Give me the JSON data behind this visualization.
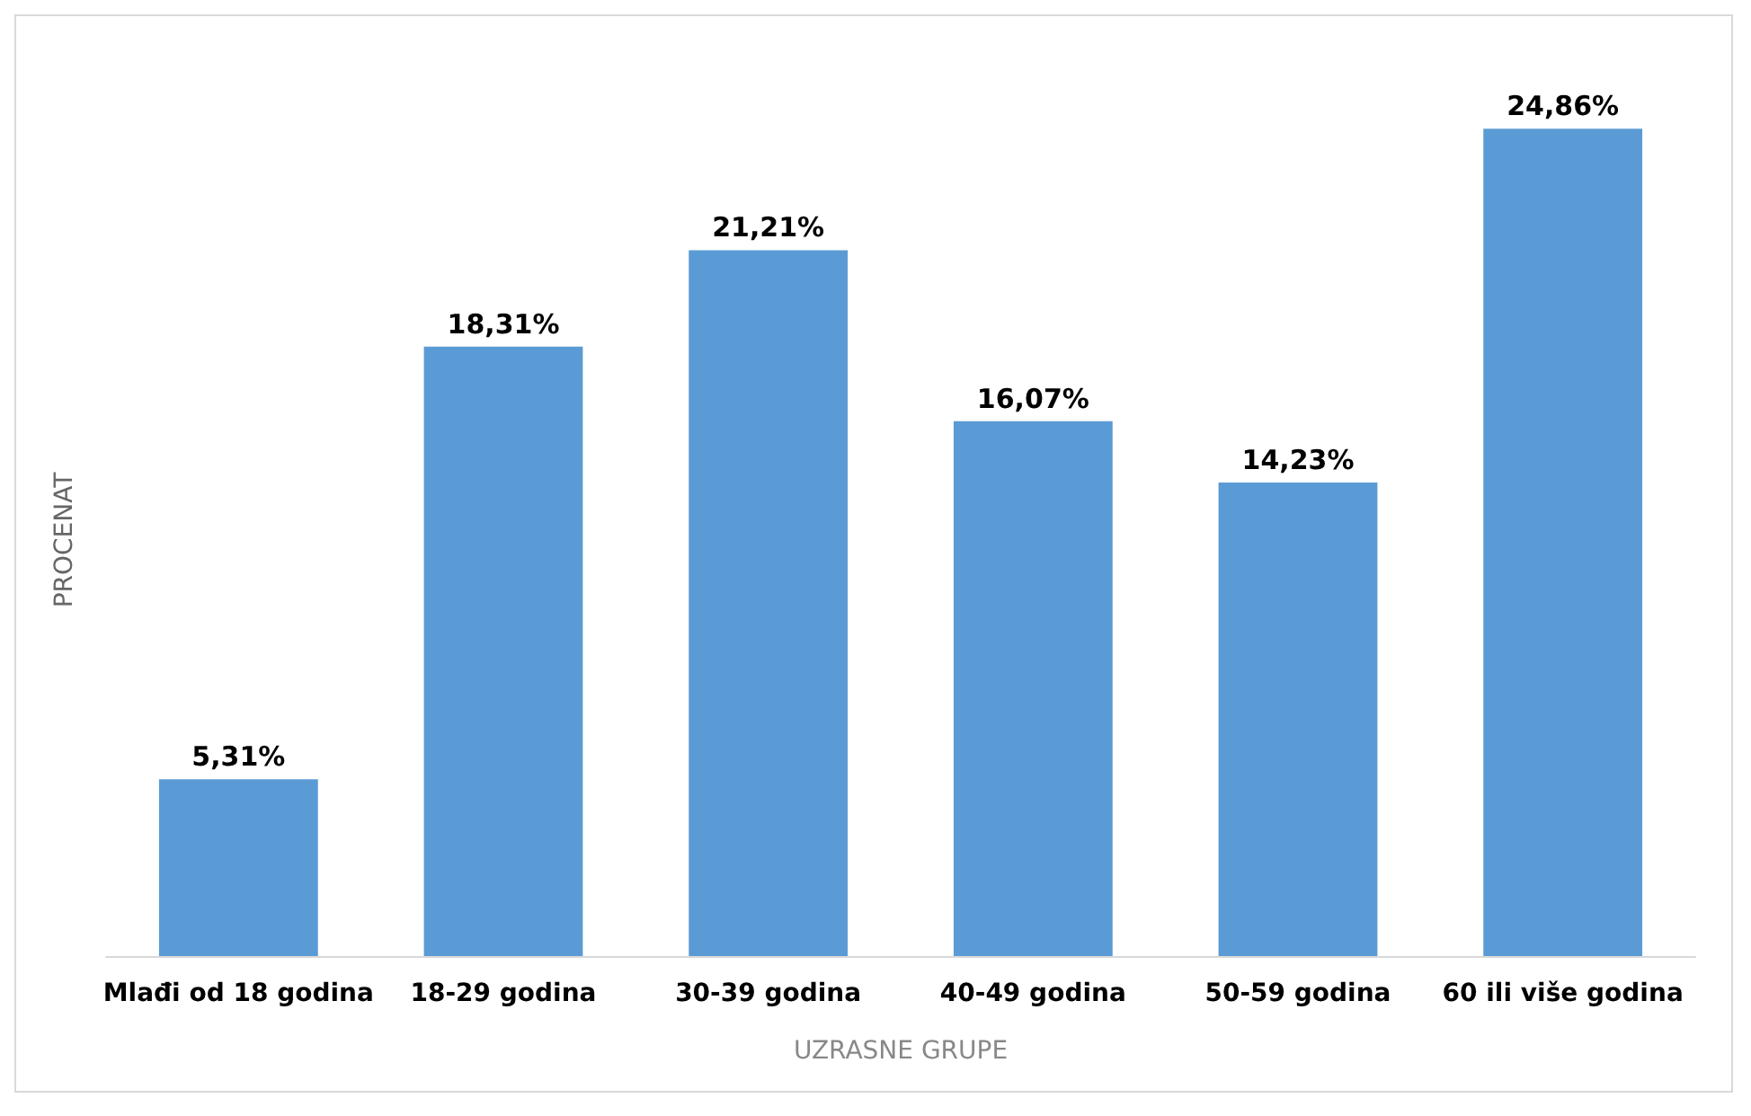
{
  "chart_data": {
    "type": "bar",
    "xlabel": "UZRASNE GRUPE",
    "ylabel": "PROCENAT",
    "categories": [
      "Mlađi od 18 godina",
      "18-29 godina",
      "30-39 godina",
      "40-49 godina",
      "50-59 godina",
      "60 ili više godina"
    ],
    "values": [
      5.31,
      18.31,
      21.21,
      16.07,
      14.23,
      24.86
    ],
    "value_labels": [
      "5,31%",
      "18,31%",
      "21,21%",
      "16,07%",
      "14,23%",
      "24,86%"
    ],
    "color": "#5b9bd5"
  }
}
